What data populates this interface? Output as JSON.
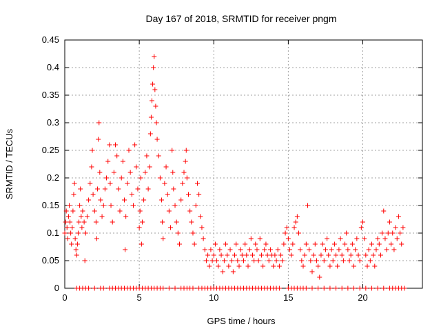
{
  "chart_data": {
    "type": "scatter",
    "title": "Day 167 of 2018, SRMTID for receiver pngm",
    "xlabel": "GPS time / hours",
    "ylabel": "SRMTID / TECUs",
    "xlim": [
      0,
      24
    ],
    "ylim": [
      0,
      0.45
    ],
    "xticks": [
      "0",
      "5",
      "10",
      "15",
      "20"
    ],
    "xtick_values": [
      0,
      5,
      10,
      15,
      20
    ],
    "yticks": [
      "0",
      "0.05",
      "0.1",
      "0.15",
      "0.2",
      "0.25",
      "0.3",
      "0.35",
      "0.4",
      "0.45"
    ],
    "ytick_values": [
      0,
      0.05,
      0.1,
      0.15,
      0.2,
      0.25,
      0.3,
      0.35,
      0.4,
      0.45
    ],
    "grid": true,
    "marker": "plus",
    "color": "#ff0000",
    "series": [
      {
        "name": "SRMTID",
        "points": [
          [
            0.0,
            0.1
          ],
          [
            0.05,
            0.12
          ],
          [
            0.1,
            0.14
          ],
          [
            0.15,
            0.11
          ],
          [
            0.2,
            0.09
          ],
          [
            0.25,
            0.13
          ],
          [
            0.3,
            0.15
          ],
          [
            0.35,
            0.12
          ],
          [
            0.4,
            0.1
          ],
          [
            0.45,
            0.08
          ],
          [
            0.5,
            0.11
          ],
          [
            0.55,
            0.14
          ],
          [
            0.6,
            0.17
          ],
          [
            0.65,
            0.19
          ],
          [
            0.7,
            0.09
          ],
          [
            0.75,
            0.07
          ],
          [
            0.8,
            0.06
          ],
          [
            0.85,
            0.08
          ],
          [
            0.9,
            0.1
          ],
          [
            0.95,
            0.12
          ],
          [
            1.0,
            0.15
          ],
          [
            1.05,
            0.18
          ],
          [
            1.1,
            0.13
          ],
          [
            1.15,
            0.11
          ],
          [
            1.2,
            0.14
          ],
          [
            1.3,
            0.12
          ],
          [
            1.35,
            0.05
          ],
          [
            1.4,
            0.1
          ],
          [
            1.5,
            0.13
          ],
          [
            1.6,
            0.16
          ],
          [
            1.7,
            0.19
          ],
          [
            1.8,
            0.22
          ],
          [
            1.85,
            0.25
          ],
          [
            1.9,
            0.17
          ],
          [
            2.0,
            0.14
          ],
          [
            2.1,
            0.12
          ],
          [
            2.15,
            0.09
          ],
          [
            2.2,
            0.18
          ],
          [
            2.25,
            0.27
          ],
          [
            2.3,
            0.3
          ],
          [
            2.35,
            0.21
          ],
          [
            2.4,
            0.16
          ],
          [
            2.5,
            0.13
          ],
          [
            2.6,
            0.15
          ],
          [
            2.7,
            0.18
          ],
          [
            2.8,
            0.2
          ],
          [
            2.9,
            0.23
          ],
          [
            3.0,
            0.26
          ],
          [
            3.05,
            0.19
          ],
          [
            3.1,
            0.15
          ],
          [
            3.2,
            0.12
          ],
          [
            3.3,
            0.21
          ],
          [
            3.4,
            0.26
          ],
          [
            3.5,
            0.24
          ],
          [
            3.6,
            0.18
          ],
          [
            3.7,
            0.14
          ],
          [
            3.8,
            0.2
          ],
          [
            3.9,
            0.23
          ],
          [
            4.0,
            0.16
          ],
          [
            4.05,
            0.07
          ],
          [
            4.1,
            0.13
          ],
          [
            4.2,
            0.19
          ],
          [
            4.3,
            0.25
          ],
          [
            4.4,
            0.21
          ],
          [
            4.5,
            0.17
          ],
          [
            4.6,
            0.15
          ],
          [
            4.7,
            0.26
          ],
          [
            4.8,
            0.22
          ],
          [
            4.9,
            0.18
          ],
          [
            5.0,
            0.11
          ],
          [
            5.05,
            0.14
          ],
          [
            5.1,
            0.2
          ],
          [
            5.15,
            0.08
          ],
          [
            5.2,
            0.12
          ],
          [
            5.3,
            0.16
          ],
          [
            5.4,
            0.21
          ],
          [
            5.5,
            0.24
          ],
          [
            5.6,
            0.18
          ],
          [
            5.7,
            0.22
          ],
          [
            5.75,
            0.28
          ],
          [
            5.8,
            0.31
          ],
          [
            5.85,
            0.34
          ],
          [
            5.9,
            0.37
          ],
          [
            5.95,
            0.4
          ],
          [
            6.0,
            0.42
          ],
          [
            6.05,
            0.36
          ],
          [
            6.1,
            0.33
          ],
          [
            6.15,
            0.3
          ],
          [
            6.2,
            0.27
          ],
          [
            6.3,
            0.24
          ],
          [
            6.4,
            0.2
          ],
          [
            6.5,
            0.16
          ],
          [
            6.55,
            0.12
          ],
          [
            6.6,
            0.09
          ],
          [
            6.7,
            0.19
          ],
          [
            6.8,
            0.22
          ],
          [
            6.9,
            0.17
          ],
          [
            7.0,
            0.14
          ],
          [
            7.1,
            0.11
          ],
          [
            7.2,
            0.25
          ],
          [
            7.25,
            0.21
          ],
          [
            7.3,
            0.18
          ],
          [
            7.4,
            0.15
          ],
          [
            7.5,
            0.12
          ],
          [
            7.6,
            0.1
          ],
          [
            7.7,
            0.08
          ],
          [
            7.8,
            0.16
          ],
          [
            7.9,
            0.19
          ],
          [
            8.0,
            0.21
          ],
          [
            8.1,
            0.23
          ],
          [
            8.15,
            0.25
          ],
          [
            8.2,
            0.2
          ],
          [
            8.3,
            0.17
          ],
          [
            8.4,
            0.14
          ],
          [
            8.5,
            0.12
          ],
          [
            8.6,
            0.1
          ],
          [
            8.7,
            0.08
          ],
          [
            8.8,
            0.15
          ],
          [
            8.9,
            0.19
          ],
          [
            9.0,
            0.17
          ],
          [
            9.1,
            0.13
          ],
          [
            9.2,
            0.11
          ],
          [
            9.3,
            0.09
          ],
          [
            9.4,
            0.07
          ],
          [
            9.5,
            0.05
          ],
          [
            9.6,
            0.06
          ],
          [
            9.7,
            0.04
          ],
          [
            9.8,
            0.07
          ],
          [
            9.9,
            0.05
          ],
          [
            10.0,
            0.06
          ],
          [
            10.1,
            0.08
          ],
          [
            10.2,
            0.05
          ],
          [
            10.3,
            0.04
          ],
          [
            10.4,
            0.07
          ],
          [
            10.5,
            0.06
          ],
          [
            10.6,
            0.03
          ],
          [
            10.7,
            0.05
          ],
          [
            10.8,
            0.08
          ],
          [
            10.9,
            0.06
          ],
          [
            11.0,
            0.04
          ],
          [
            11.1,
            0.07
          ],
          [
            11.2,
            0.05
          ],
          [
            11.3,
            0.03
          ],
          [
            11.4,
            0.06
          ],
          [
            11.5,
            0.08
          ],
          [
            11.6,
            0.05
          ],
          [
            11.7,
            0.04
          ],
          [
            11.8,
            0.07
          ],
          [
            11.9,
            0.06
          ],
          [
            12.0,
            0.05
          ],
          [
            12.1,
            0.08
          ],
          [
            12.2,
            0.06
          ],
          [
            12.3,
            0.04
          ],
          [
            12.4,
            0.07
          ],
          [
            12.5,
            0.09
          ],
          [
            12.6,
            0.06
          ],
          [
            12.7,
            0.05
          ],
          [
            12.8,
            0.08
          ],
          [
            12.9,
            0.07
          ],
          [
            13.0,
            0.05
          ],
          [
            13.1,
            0.09
          ],
          [
            13.2,
            0.06
          ],
          [
            13.3,
            0.04
          ],
          [
            13.4,
            0.07
          ],
          [
            13.5,
            0.08
          ],
          [
            13.6,
            0.06
          ],
          [
            13.7,
            0.05
          ],
          [
            13.8,
            0.07
          ],
          [
            13.9,
            0.06
          ],
          [
            14.0,
            0.04
          ],
          [
            14.1,
            0.06
          ],
          [
            14.2,
            0.05
          ],
          [
            14.3,
            0.07
          ],
          [
            14.4,
            0.04
          ],
          [
            14.5,
            0.06
          ],
          [
            14.6,
            0.05
          ],
          [
            14.7,
            0.08
          ],
          [
            14.8,
            0.1
          ],
          [
            14.9,
            0.11
          ],
          [
            15.0,
            0.09
          ],
          [
            15.1,
            0.07
          ],
          [
            15.2,
            0.06
          ],
          [
            15.3,
            0.08
          ],
          [
            15.4,
            0.11
          ],
          [
            15.5,
            0.12
          ],
          [
            15.6,
            0.13
          ],
          [
            15.7,
            0.1
          ],
          [
            15.8,
            0.07
          ],
          [
            15.9,
            0.05
          ],
          [
            16.0,
            0.04
          ],
          [
            16.1,
            0.06
          ],
          [
            16.2,
            0.08
          ],
          [
            16.3,
            0.15
          ],
          [
            16.4,
            0.07
          ],
          [
            16.5,
            0.05
          ],
          [
            16.6,
            0.03
          ],
          [
            16.7,
            0.06
          ],
          [
            16.8,
            0.08
          ],
          [
            16.9,
            0.05
          ],
          [
            17.0,
            0.04
          ],
          [
            17.1,
            0.02
          ],
          [
            17.2,
            0.06
          ],
          [
            17.3,
            0.08
          ],
          [
            17.4,
            0.05
          ],
          [
            17.5,
            0.07
          ],
          [
            17.6,
            0.09
          ],
          [
            17.7,
            0.06
          ],
          [
            17.8,
            0.04
          ],
          [
            17.9,
            0.07
          ],
          [
            18.0,
            0.05
          ],
          [
            18.1,
            0.08
          ],
          [
            18.2,
            0.06
          ],
          [
            18.3,
            0.04
          ],
          [
            18.4,
            0.07
          ],
          [
            18.5,
            0.09
          ],
          [
            18.6,
            0.06
          ],
          [
            18.7,
            0.05
          ],
          [
            18.8,
            0.08
          ],
          [
            18.9,
            0.1
          ],
          [
            19.0,
            0.07
          ],
          [
            19.1,
            0.05
          ],
          [
            19.2,
            0.06
          ],
          [
            19.3,
            0.08
          ],
          [
            19.4,
            0.04
          ],
          [
            19.5,
            0.07
          ],
          [
            19.6,
            0.09
          ],
          [
            19.7,
            0.06
          ],
          [
            19.8,
            0.05
          ],
          [
            19.9,
            0.11
          ],
          [
            20.0,
            0.12
          ],
          [
            20.1,
            0.09
          ],
          [
            20.2,
            0.06
          ],
          [
            20.3,
            0.04
          ],
          [
            20.4,
            0.07
          ],
          [
            20.5,
            0.05
          ],
          [
            20.6,
            0.08
          ],
          [
            20.7,
            0.06
          ],
          [
            20.8,
            0.04
          ],
          [
            20.9,
            0.07
          ],
          [
            21.0,
            0.09
          ],
          [
            21.1,
            0.08
          ],
          [
            21.2,
            0.06
          ],
          [
            21.3,
            0.1
          ],
          [
            21.4,
            0.14
          ],
          [
            21.5,
            0.09
          ],
          [
            21.6,
            0.07
          ],
          [
            21.7,
            0.1
          ],
          [
            21.8,
            0.12
          ],
          [
            21.9,
            0.08
          ],
          [
            22.0,
            0.1
          ],
          [
            22.1,
            0.07
          ],
          [
            22.2,
            0.11
          ],
          [
            22.3,
            0.09
          ],
          [
            22.4,
            0.13
          ],
          [
            22.5,
            0.1
          ],
          [
            22.6,
            0.08
          ],
          [
            22.7,
            0.11
          ]
        ],
        "baseline_x": [
          0.8,
          1.0,
          1.2,
          1.4,
          1.6,
          2.0,
          2.4,
          2.6,
          3.0,
          3.2,
          3.4,
          3.6,
          3.8,
          4.0,
          4.2,
          4.4,
          4.6,
          4.8,
          5.0,
          5.2,
          5.4,
          5.6,
          5.8,
          6.0,
          6.2,
          6.4,
          6.6,
          7.0,
          7.4,
          7.8,
          8.0,
          8.2,
          8.4,
          8.6,
          9.0,
          9.2,
          9.4,
          9.6,
          9.8,
          10.0,
          10.2,
          10.4,
          10.6,
          10.8,
          11.0,
          11.2,
          11.4,
          11.6,
          11.8,
          12.0,
          12.2,
          12.4,
          12.6,
          12.8,
          13.0,
          13.2,
          13.4,
          13.6,
          13.8,
          14.0,
          14.2,
          14.4,
          15.0,
          15.2,
          15.4,
          15.6,
          15.8,
          16.0,
          16.2,
          16.6,
          17.0,
          17.4,
          17.8,
          18.2,
          18.6,
          19.0,
          19.4,
          19.8,
          20.2,
          20.6,
          21.0,
          21.4,
          21.8,
          22.0,
          22.2,
          22.4,
          22.6,
          22.8
        ]
      }
    ]
  }
}
